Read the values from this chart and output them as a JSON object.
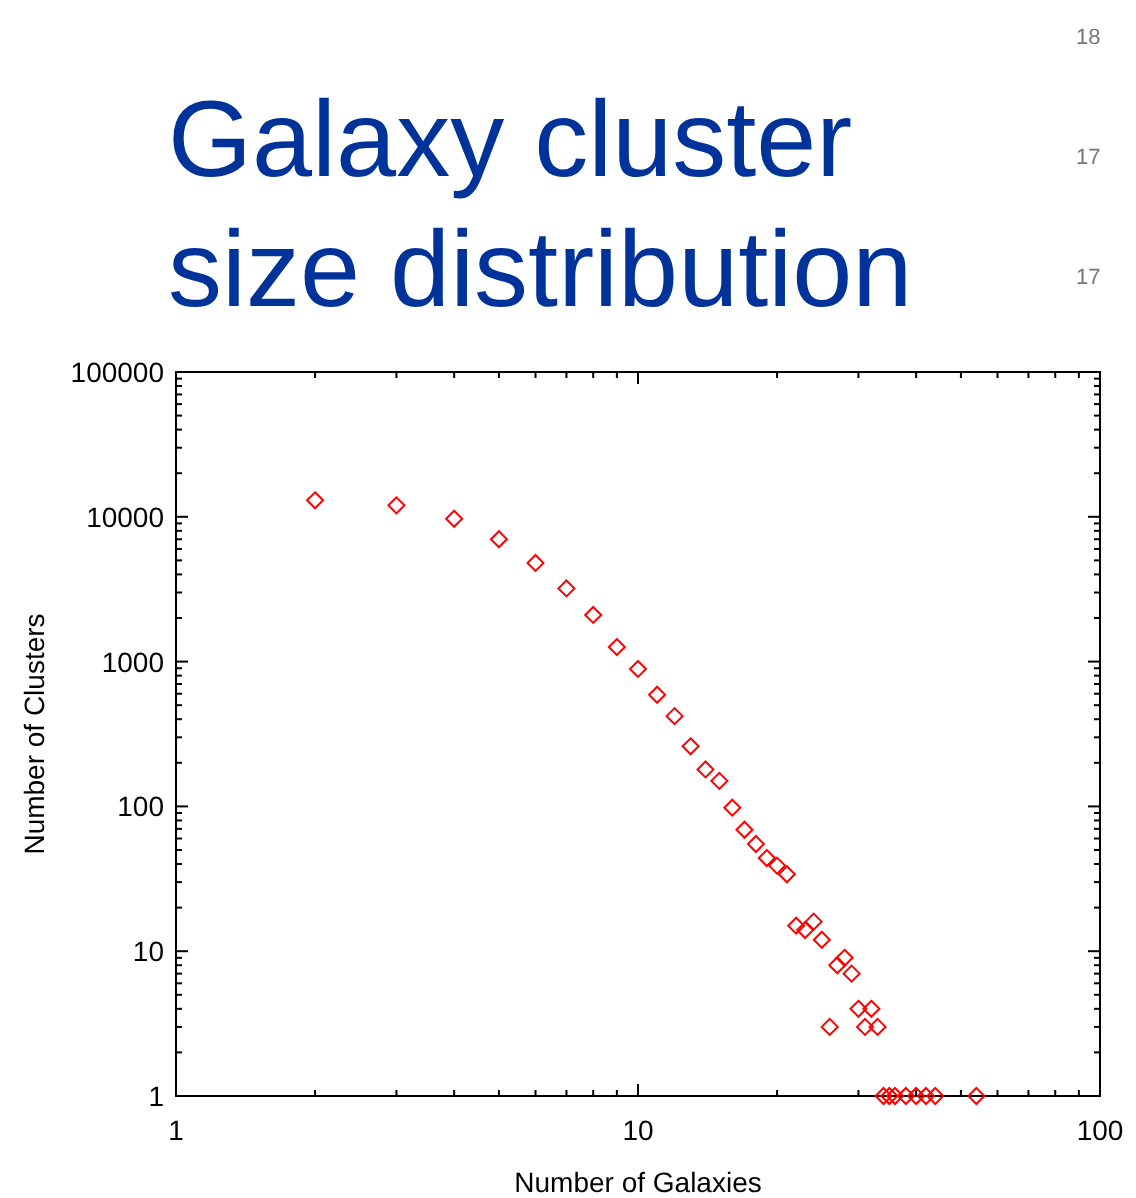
{
  "chart_data": {
    "type": "scatter",
    "title": "Galaxy cluster size distribution",
    "xlabel": "Number of Galaxies",
    "ylabel": "Number of Clusters",
    "log": "xy",
    "grid": false,
    "marker": "diamond",
    "x": [
      2,
      3,
      4,
      5,
      6,
      7,
      8,
      9,
      10,
      11,
      12,
      13,
      14,
      15,
      16,
      17,
      18,
      19,
      20,
      21,
      22,
      23,
      24,
      25,
      26,
      27,
      28,
      29,
      30,
      31,
      32,
      33,
      34,
      35,
      36,
      38,
      40,
      42,
      44,
      54
    ],
    "series": [
      {
        "color": "#ff0000",
        "values": [
          13000,
          12000,
          9700,
          7000,
          4800,
          3200,
          2100,
          1260,
          890,
          590,
          420,
          260,
          180,
          150,
          98,
          69,
          55,
          44,
          39,
          34,
          15,
          14,
          16,
          12,
          3,
          8,
          9,
          7,
          4,
          3,
          4,
          3,
          1,
          1,
          1,
          1,
          1,
          1,
          1,
          1
        ]
      }
    ],
    "xlim": [
      1,
      100
    ],
    "xticks": [
      1,
      10,
      100
    ],
    "ylim": [
      1,
      100000
    ],
    "yticks": [
      1,
      10,
      100,
      1000,
      10000,
      100000
    ],
    "annotations": [
      "18",
      "17",
      "17"
    ]
  }
}
